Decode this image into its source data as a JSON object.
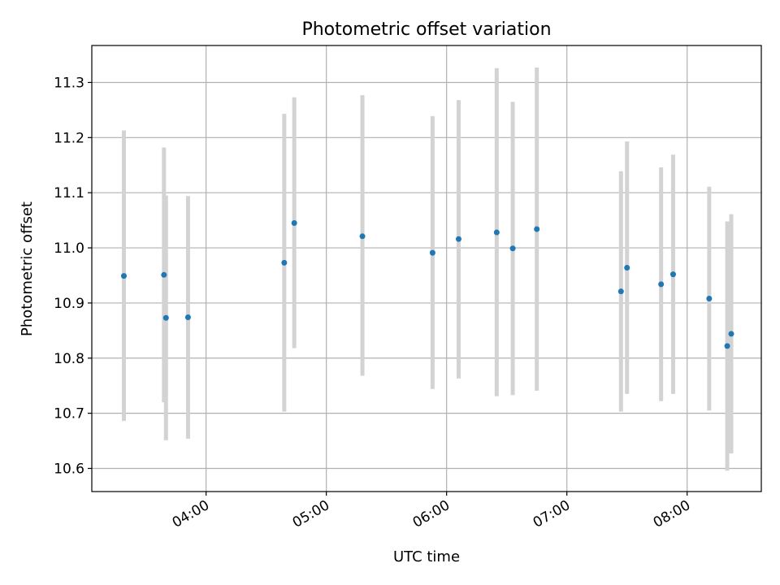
{
  "chart_data": {
    "type": "scatter",
    "title": "Photometric offset variation",
    "xlabel": "UTC time",
    "ylabel": "Photometric offset",
    "x_is_time": true,
    "xlim": [
      "03:03",
      "08:37"
    ],
    "ylim": [
      10.558,
      11.367
    ],
    "x_ticks": [
      "04:00",
      "05:00",
      "06:00",
      "07:00",
      "08:00"
    ],
    "y_ticks": [
      10.6,
      10.7,
      10.8,
      10.9,
      11.0,
      11.1,
      11.2,
      11.3
    ],
    "y_tick_labels": [
      "10.6",
      "10.7",
      "10.8",
      "10.9",
      "11.0",
      "11.1",
      "11.2",
      "11.3"
    ],
    "grid": true,
    "colors": {
      "points": "#1f77b4",
      "error_bars": "#d3d3d3",
      "grid": "#b0b0b0"
    },
    "series": [
      {
        "points": [
          {
            "x": "03:19",
            "y": 10.949,
            "ylow": 10.686,
            "yhigh": 11.213
          },
          {
            "x": "03:39",
            "y": 10.951,
            "ylow": 10.72,
            "yhigh": 11.182
          },
          {
            "x": "03:40",
            "y": 10.873,
            "ylow": 10.651,
            "yhigh": 11.095
          },
          {
            "x": "03:51",
            "y": 10.874,
            "ylow": 10.654,
            "yhigh": 11.094
          },
          {
            "x": "04:39",
            "y": 10.973,
            "ylow": 10.703,
            "yhigh": 11.243
          },
          {
            "x": "04:44",
            "y": 11.045,
            "ylow": 10.818,
            "yhigh": 11.273
          },
          {
            "x": "05:18",
            "y": 11.021,
            "ylow": 10.768,
            "yhigh": 11.277
          },
          {
            "x": "05:53",
            "y": 10.991,
            "ylow": 10.744,
            "yhigh": 11.239
          },
          {
            "x": "06:06",
            "y": 11.016,
            "ylow": 10.763,
            "yhigh": 11.268
          },
          {
            "x": "06:25",
            "y": 11.028,
            "ylow": 10.731,
            "yhigh": 11.326
          },
          {
            "x": "06:33",
            "y": 10.999,
            "ylow": 10.733,
            "yhigh": 11.265
          },
          {
            "x": "06:45",
            "y": 11.034,
            "ylow": 10.741,
            "yhigh": 11.327
          },
          {
            "x": "07:27",
            "y": 10.921,
            "ylow": 10.703,
            "yhigh": 11.139
          },
          {
            "x": "07:30",
            "y": 10.964,
            "ylow": 10.735,
            "yhigh": 11.193
          },
          {
            "x": "07:47",
            "y": 10.934,
            "ylow": 10.722,
            "yhigh": 11.146
          },
          {
            "x": "07:53",
            "y": 10.952,
            "ylow": 10.735,
            "yhigh": 11.169
          },
          {
            "x": "08:11",
            "y": 10.908,
            "ylow": 10.705,
            "yhigh": 11.111
          },
          {
            "x": "08:20",
            "y": 10.822,
            "ylow": 10.596,
            "yhigh": 11.048
          },
          {
            "x": "08:22",
            "y": 10.844,
            "ylow": 10.627,
            "yhigh": 11.061
          }
        ]
      }
    ]
  }
}
